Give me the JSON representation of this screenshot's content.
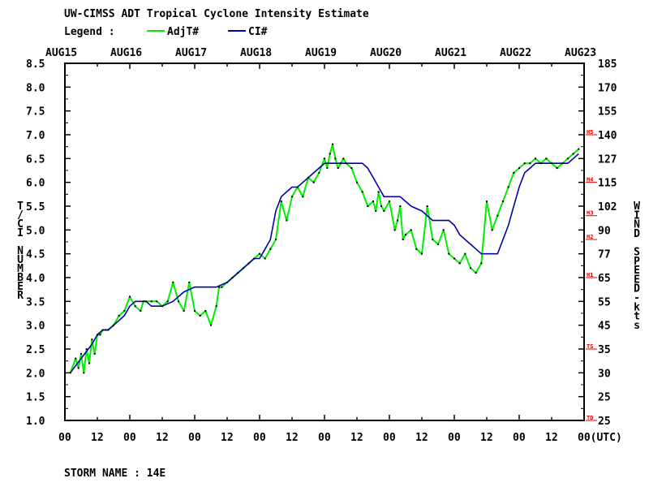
{
  "header": {
    "title": "UW-CIMSS ADT Tropical Cyclone Intensity Estimate",
    "legend_label": "Legend :",
    "legend_items": [
      {
        "label": "AdjT#",
        "color": "#00ee00"
      },
      {
        "label": "CI#",
        "color": "#0000aa"
      }
    ]
  },
  "footer": {
    "storm_name": "STORM NAME : 14E"
  },
  "chart_data": {
    "type": "line",
    "top_axis_labels": [
      "AUG15",
      "AUG16",
      "AUG17",
      "AUG18",
      "AUG19",
      "AUG20",
      "AUG21",
      "AUG22",
      "AUG23"
    ],
    "bottom_axis_labels": [
      "00",
      "12",
      "00",
      "12",
      "00",
      "12",
      "00",
      "12",
      "00",
      "12",
      "00",
      "12",
      "00",
      "12",
      "00",
      "12",
      "00(UTC)"
    ],
    "xlim_hours": [
      0,
      192
    ],
    "left_axis": {
      "label": "T/CI NUMBER",
      "ylim": [
        1.0,
        8.5
      ],
      "ticks": [
        "1.0",
        "1.5",
        "2.0",
        "2.5",
        "3.0",
        "3.5",
        "4.0",
        "4.5",
        "5.0",
        "5.5",
        "6.0",
        "6.5",
        "7.0",
        "7.5",
        "8.0",
        "8.5"
      ]
    },
    "right_axis": {
      "label": "WIND SPEED-kts",
      "ticks": [
        {
          "t": 1.0,
          "label": "25"
        },
        {
          "t": 1.5,
          "label": "25"
        },
        {
          "t": 2.0,
          "label": "30"
        },
        {
          "t": 2.5,
          "label": "35"
        },
        {
          "t": 3.0,
          "label": "45"
        },
        {
          "t": 3.5,
          "label": "55"
        },
        {
          "t": 4.0,
          "label": "65"
        },
        {
          "t": 4.5,
          "label": "77"
        },
        {
          "t": 5.0,
          "label": "90"
        },
        {
          "t": 5.5,
          "label": "102"
        },
        {
          "t": 6.0,
          "label": "115"
        },
        {
          "t": 6.5,
          "label": "127"
        },
        {
          "t": 7.0,
          "label": "140"
        },
        {
          "t": 7.5,
          "label": "155"
        },
        {
          "t": 8.0,
          "label": "170"
        },
        {
          "t": 8.5,
          "label": "185"
        }
      ],
      "category_markers": [
        {
          "t": 1.0,
          "label": "TD"
        },
        {
          "t": 2.5,
          "label": "TS"
        },
        {
          "t": 4.0,
          "label": "H1"
        },
        {
          "t": 4.8,
          "label": "H2"
        },
        {
          "t": 5.3,
          "label": "H3"
        },
        {
          "t": 6.0,
          "label": "H4"
        },
        {
          "t": 7.0,
          "label": "H5"
        }
      ]
    },
    "series": [
      {
        "name": "AdjT#",
        "color": "#00ee00",
        "x": [
          2,
          4,
          5,
          6,
          7,
          8,
          9,
          10,
          11,
          12,
          13,
          14,
          15,
          16,
          18,
          20,
          22,
          24,
          26,
          28,
          29,
          30,
          32,
          34,
          36,
          38,
          40,
          42,
          44,
          46,
          48,
          50,
          52,
          54,
          56,
          57,
          58,
          60,
          62,
          64,
          66,
          68,
          70,
          72,
          74,
          76,
          78,
          80,
          82,
          84,
          86,
          88,
          90,
          92,
          94,
          96,
          97,
          98,
          99,
          100,
          101,
          102,
          103,
          104,
          106,
          108,
          110,
          112,
          114,
          115,
          116,
          117,
          118,
          120,
          122,
          123,
          124,
          125,
          126,
          128,
          130,
          132,
          134,
          136,
          138,
          140,
          142,
          144,
          146,
          148,
          150,
          152,
          154,
          156,
          158,
          160,
          162,
          164,
          166,
          168,
          170,
          172,
          174,
          176,
          178,
          180,
          182,
          184,
          186,
          188,
          190
        ],
        "values": [
          2.0,
          2.3,
          2.1,
          2.4,
          2.0,
          2.5,
          2.2,
          2.7,
          2.4,
          2.8,
          2.8,
          2.9,
          2.9,
          2.9,
          3.0,
          3.2,
          3.3,
          3.6,
          3.4,
          3.3,
          3.5,
          3.5,
          3.5,
          3.5,
          3.4,
          3.5,
          3.9,
          3.5,
          3.3,
          3.9,
          3.3,
          3.2,
          3.3,
          3.0,
          3.4,
          3.8,
          3.8,
          3.9,
          4.0,
          4.1,
          4.2,
          4.3,
          4.4,
          4.5,
          4.4,
          4.6,
          4.8,
          5.6,
          5.2,
          5.7,
          5.9,
          5.7,
          6.1,
          6.0,
          6.2,
          6.5,
          6.3,
          6.6,
          6.8,
          6.5,
          6.3,
          6.4,
          6.5,
          6.4,
          6.3,
          6.0,
          5.8,
          5.5,
          5.6,
          5.4,
          5.8,
          5.5,
          5.4,
          5.6,
          5.0,
          5.2,
          5.5,
          4.8,
          4.9,
          5.0,
          4.6,
          4.5,
          5.5,
          4.8,
          4.7,
          5.0,
          4.5,
          4.4,
          4.3,
          4.5,
          4.2,
          4.1,
          4.3,
          5.6,
          5.0,
          5.3,
          5.6,
          5.9,
          6.2,
          6.3,
          6.4,
          6.4,
          6.5,
          6.4,
          6.5,
          6.4,
          6.3,
          6.4,
          6.5,
          6.6,
          6.7
        ]
      },
      {
        "name": "CI#",
        "color": "#0000aa",
        "x": [
          2,
          6,
          10,
          12,
          14,
          16,
          18,
          20,
          22,
          24,
          26,
          28,
          30,
          32,
          34,
          36,
          40,
          44,
          48,
          52,
          56,
          60,
          62,
          64,
          66,
          68,
          70,
          72,
          74,
          76,
          78,
          80,
          82,
          84,
          86,
          88,
          90,
          92,
          94,
          96,
          98,
          100,
          102,
          104,
          106,
          108,
          110,
          112,
          114,
          116,
          118,
          120,
          124,
          128,
          132,
          136,
          138,
          140,
          142,
          144,
          146,
          148,
          150,
          152,
          154,
          156,
          158,
          160,
          162,
          164,
          166,
          168,
          170,
          172,
          174,
          176,
          178,
          180,
          182,
          184,
          186,
          188,
          190
        ],
        "values": [
          2.0,
          2.3,
          2.6,
          2.8,
          2.9,
          2.9,
          3.0,
          3.1,
          3.2,
          3.4,
          3.5,
          3.5,
          3.5,
          3.4,
          3.4,
          3.4,
          3.5,
          3.7,
          3.8,
          3.8,
          3.8,
          3.9,
          4.0,
          4.1,
          4.2,
          4.3,
          4.4,
          4.4,
          4.6,
          4.8,
          5.4,
          5.7,
          5.8,
          5.9,
          5.9,
          6.0,
          6.1,
          6.2,
          6.3,
          6.4,
          6.4,
          6.4,
          6.4,
          6.4,
          6.4,
          6.4,
          6.4,
          6.3,
          6.1,
          5.9,
          5.7,
          5.7,
          5.7,
          5.5,
          5.4,
          5.2,
          5.2,
          5.2,
          5.2,
          5.1,
          4.9,
          4.8,
          4.7,
          4.6,
          4.5,
          4.5,
          4.5,
          4.5,
          4.8,
          5.1,
          5.5,
          5.9,
          6.2,
          6.3,
          6.4,
          6.4,
          6.4,
          6.4,
          6.4,
          6.4,
          6.4,
          6.5,
          6.6
        ]
      }
    ]
  }
}
